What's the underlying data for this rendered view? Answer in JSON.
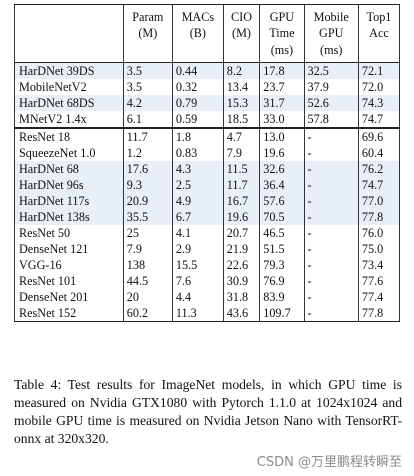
{
  "table": {
    "headers": [
      [
        "",
        ""
      ],
      [
        "Param",
        "(M)"
      ],
      [
        "MACs",
        "(B)"
      ],
      [
        "CIO",
        "(M)"
      ],
      [
        "GPU",
        "Time",
        "(ms)"
      ],
      [
        "Mobile",
        "GPU",
        "(ms)"
      ],
      [
        "Top1",
        "Acc"
      ]
    ],
    "rows": [
      {
        "model": "HarDNet 39DS",
        "param": "3.5",
        "macs": "0.44",
        "cio": "8.2",
        "gpu": "17.8",
        "mobile": "32.5",
        "top1": "72.1",
        "highlight": true
      },
      {
        "model": "MobileNetV2",
        "param": "3.5",
        "macs": "0.32",
        "cio": "13.4",
        "gpu": "23.7",
        "mobile": "37.9",
        "top1": "72.0",
        "highlight": false
      },
      {
        "model": "HarDNet 68DS",
        "param": "4.2",
        "macs": "0.79",
        "cio": "15.3",
        "gpu": "31.7",
        "mobile": "52.6",
        "top1": "74.3",
        "highlight": true
      },
      {
        "model": "MNetV2 1.4x",
        "param": "6.1",
        "macs": "0.59",
        "cio": "18.5",
        "gpu": "33.0",
        "mobile": "57.8",
        "top1": "74.7",
        "highlight": false
      },
      {
        "model": "ResNet 18",
        "param": "11.7",
        "macs": "1.8",
        "cio": "4.7",
        "gpu": "13.0",
        "mobile": "-",
        "top1": "69.6",
        "highlight": false
      },
      {
        "model": "SqueezeNet 1.0",
        "param": "1.2",
        "macs": "0.83",
        "cio": "7.9",
        "gpu": "19.6",
        "mobile": "-",
        "top1": "60.4",
        "highlight": false
      },
      {
        "model": "HarDNet 68",
        "param": "17.6",
        "macs": "4.3",
        "cio": "11.5",
        "gpu": "32.6",
        "mobile": "-",
        "top1": "76.2",
        "highlight": true
      },
      {
        "model": "HarDNet 96s",
        "param": "9.3",
        "macs": "2.5",
        "cio": "11.7",
        "gpu": "36.4",
        "mobile": "-",
        "top1": "74.7",
        "highlight": true
      },
      {
        "model": "HarDNet 117s",
        "param": "20.9",
        "macs": "4.9",
        "cio": "16.7",
        "gpu": "57.6",
        "mobile": "-",
        "top1": "77.0",
        "highlight": true
      },
      {
        "model": "HarDNet 138s",
        "param": "35.5",
        "macs": "6.7",
        "cio": "19.6",
        "gpu": "70.5",
        "mobile": "-",
        "top1": "77.8",
        "highlight": true
      },
      {
        "model": "ResNet 50",
        "param": "25",
        "macs": "4.1",
        "cio": "20.7",
        "gpu": "46.5",
        "mobile": "-",
        "top1": "76.0",
        "highlight": false
      },
      {
        "model": "DenseNet 121",
        "param": "7.9",
        "macs": "2.9",
        "cio": "21.9",
        "gpu": "51.5",
        "mobile": "-",
        "top1": "75.0",
        "highlight": false
      },
      {
        "model": "VGG-16",
        "param": "138",
        "macs": "15.5",
        "cio": "22.6",
        "gpu": "79.3",
        "mobile": "-",
        "top1": "73.4",
        "highlight": false
      },
      {
        "model": "ResNet 101",
        "param": "44.5",
        "macs": "7.6",
        "cio": "30.9",
        "gpu": "76.9",
        "mobile": "-",
        "top1": "77.6",
        "highlight": false
      },
      {
        "model": "DenseNet 201",
        "param": "20",
        "macs": "4.4",
        "cio": "31.8",
        "gpu": "83.9",
        "mobile": "-",
        "top1": "77.4",
        "highlight": false
      },
      {
        "model": "ResNet 152",
        "param": "60.2",
        "macs": "11.3",
        "cio": "43.6",
        "gpu": "109.7",
        "mobile": "-",
        "top1": "77.8",
        "highlight": false
      }
    ],
    "highlight_color": "#e8eff6"
  },
  "caption": "Table 4: Test results for ImageNet models, in which GPU time is measured on Nvidia GTX1080 with Pytorch 1.1.0 at 1024x1024 and mobile GPU time is measured on Nvidia Jetson Nano with TensorRT-onnx at 320x320.",
  "watermark": "CSDN @万里鹏程转瞬至"
}
